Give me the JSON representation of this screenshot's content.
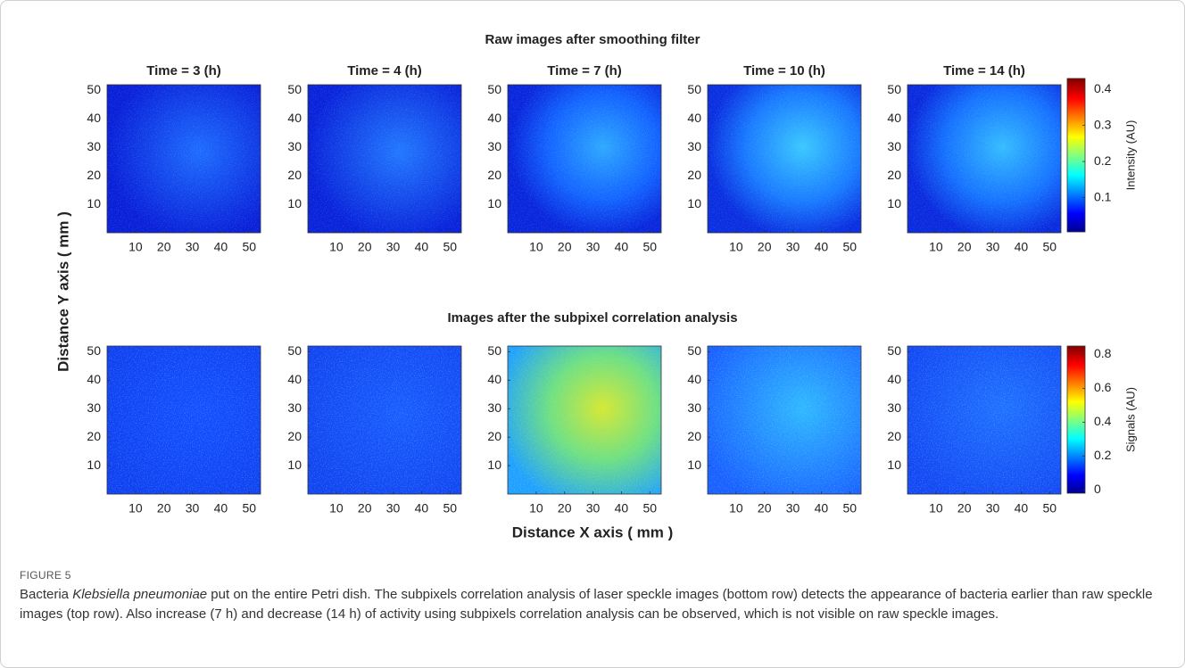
{
  "figure": {
    "rows": [
      {
        "title": "Raw images after smoothing filter",
        "colorbar": {
          "label": "Intensity (AU)",
          "lim": [
            0.005,
            0.43
          ],
          "ticks": [
            0.1,
            0.2,
            0.3,
            0.4
          ]
        }
      },
      {
        "title": "Images after the subpixel correlation analysis",
        "colorbar": {
          "label": "Signals (AU)",
          "lim": [
            -0.02,
            0.85
          ],
          "ticks": [
            0,
            0.2,
            0.4,
            0.6,
            0.8
          ]
        }
      }
    ],
    "panel_titles": [
      "Time = 3 (h)",
      "Time = 4 (h)",
      "Time = 7 (h)",
      "Time = 10 (h)",
      "Time = 14 (h)"
    ],
    "xlim": [
      0,
      54
    ],
    "ylim": [
      0,
      52
    ],
    "xticks": [
      10,
      20,
      30,
      40,
      50
    ],
    "yticks": [
      10,
      20,
      30,
      40,
      50
    ],
    "xlabel": "Distance X axis ( mm )",
    "ylabel": "Distance Y axis ( mm )"
  },
  "caption": {
    "label": "FIGURE 5",
    "parts": [
      "Bacteria ",
      "Klebsiella pneumoniae",
      " put on the entire Petri dish. The subpixels correlation analysis of laser speckle images (bottom row) detects the appearance of bacteria earlier than raw speckle images (top row). Also increase (7 h) and decrease (14 h) of activity using subpixels correlation analysis can be observed, which is not visible on raw speckle images."
    ]
  }
}
